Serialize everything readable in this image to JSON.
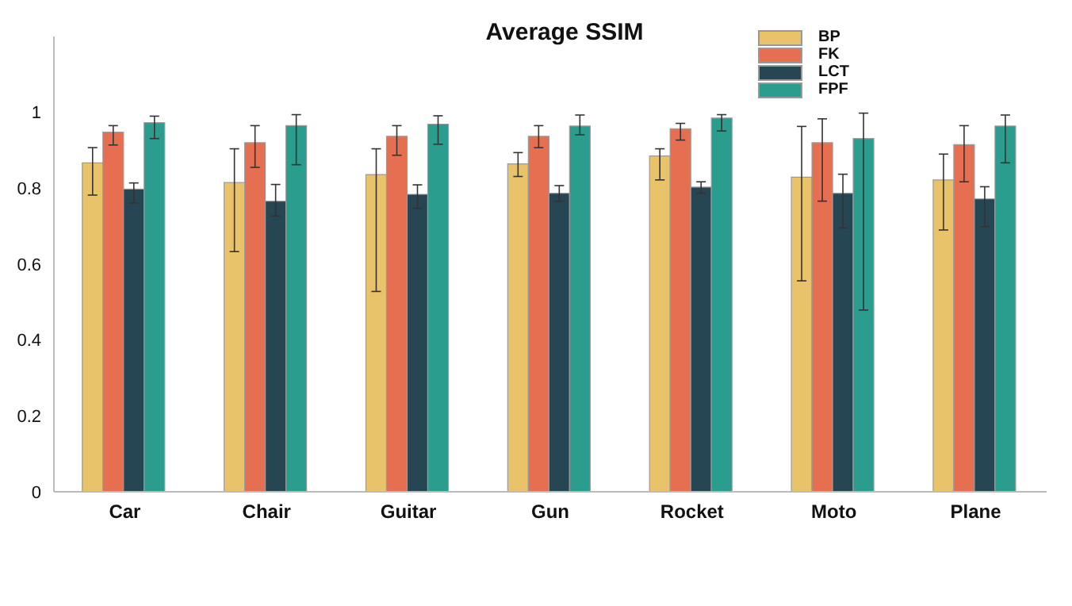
{
  "chart_data": {
    "type": "bar",
    "title": "Average SSIM",
    "categories": [
      "Car",
      "Chair",
      "Guitar",
      "Gun",
      "Rocket",
      "Moto",
      "Plane"
    ],
    "series": [
      {
        "name": "BP",
        "color": "#e8c36a",
        "values": [
          0.867,
          0.815,
          0.836,
          0.864,
          0.885,
          0.829,
          0.822
        ],
        "errors": [
          [
            0.782,
            0.907
          ],
          [
            0.633,
            0.904
          ],
          [
            0.528,
            0.904
          ],
          [
            0.831,
            0.894
          ],
          [
            0.822,
            0.904
          ],
          [
            0.556,
            0.963
          ],
          [
            0.69,
            0.89
          ]
        ]
      },
      {
        "name": "FK",
        "color": "#e76f51",
        "values": [
          0.948,
          0.92,
          0.937,
          0.937,
          0.957,
          0.92,
          0.915
        ],
        "errors": [
          [
            0.914,
            0.965
          ],
          [
            0.855,
            0.965
          ],
          [
            0.887,
            0.965
          ],
          [
            0.907,
            0.965
          ],
          [
            0.927,
            0.971
          ],
          [
            0.766,
            0.983
          ],
          [
            0.817,
            0.965
          ]
        ]
      },
      {
        "name": "LCT",
        "color": "#264653",
        "values": [
          0.798,
          0.766,
          0.784,
          0.787,
          0.803,
          0.787,
          0.772
        ],
        "errors": [
          [
            0.761,
            0.814
          ],
          [
            0.727,
            0.81
          ],
          [
            0.747,
            0.809
          ],
          [
            0.766,
            0.807
          ],
          [
            0.787,
            0.817
          ],
          [
            0.695,
            0.837
          ],
          [
            0.699,
            0.804
          ]
        ]
      },
      {
        "name": "FPF",
        "color": "#2a9d8f",
        "values": [
          0.973,
          0.965,
          0.969,
          0.964,
          0.985,
          0.931,
          0.964
        ],
        "errors": [
          [
            0.931,
            0.99
          ],
          [
            0.862,
            0.994
          ],
          [
            0.916,
            0.991
          ],
          [
            0.941,
            0.993
          ],
          [
            0.951,
            0.994
          ],
          [
            0.479,
            0.998
          ],
          [
            0.867,
            0.993
          ]
        ]
      }
    ],
    "ylim": [
      0,
      1.2
    ],
    "yticks": [
      0,
      0.2,
      0.4,
      0.6,
      0.8,
      1
    ],
    "grid": false,
    "legend": "top right"
  }
}
